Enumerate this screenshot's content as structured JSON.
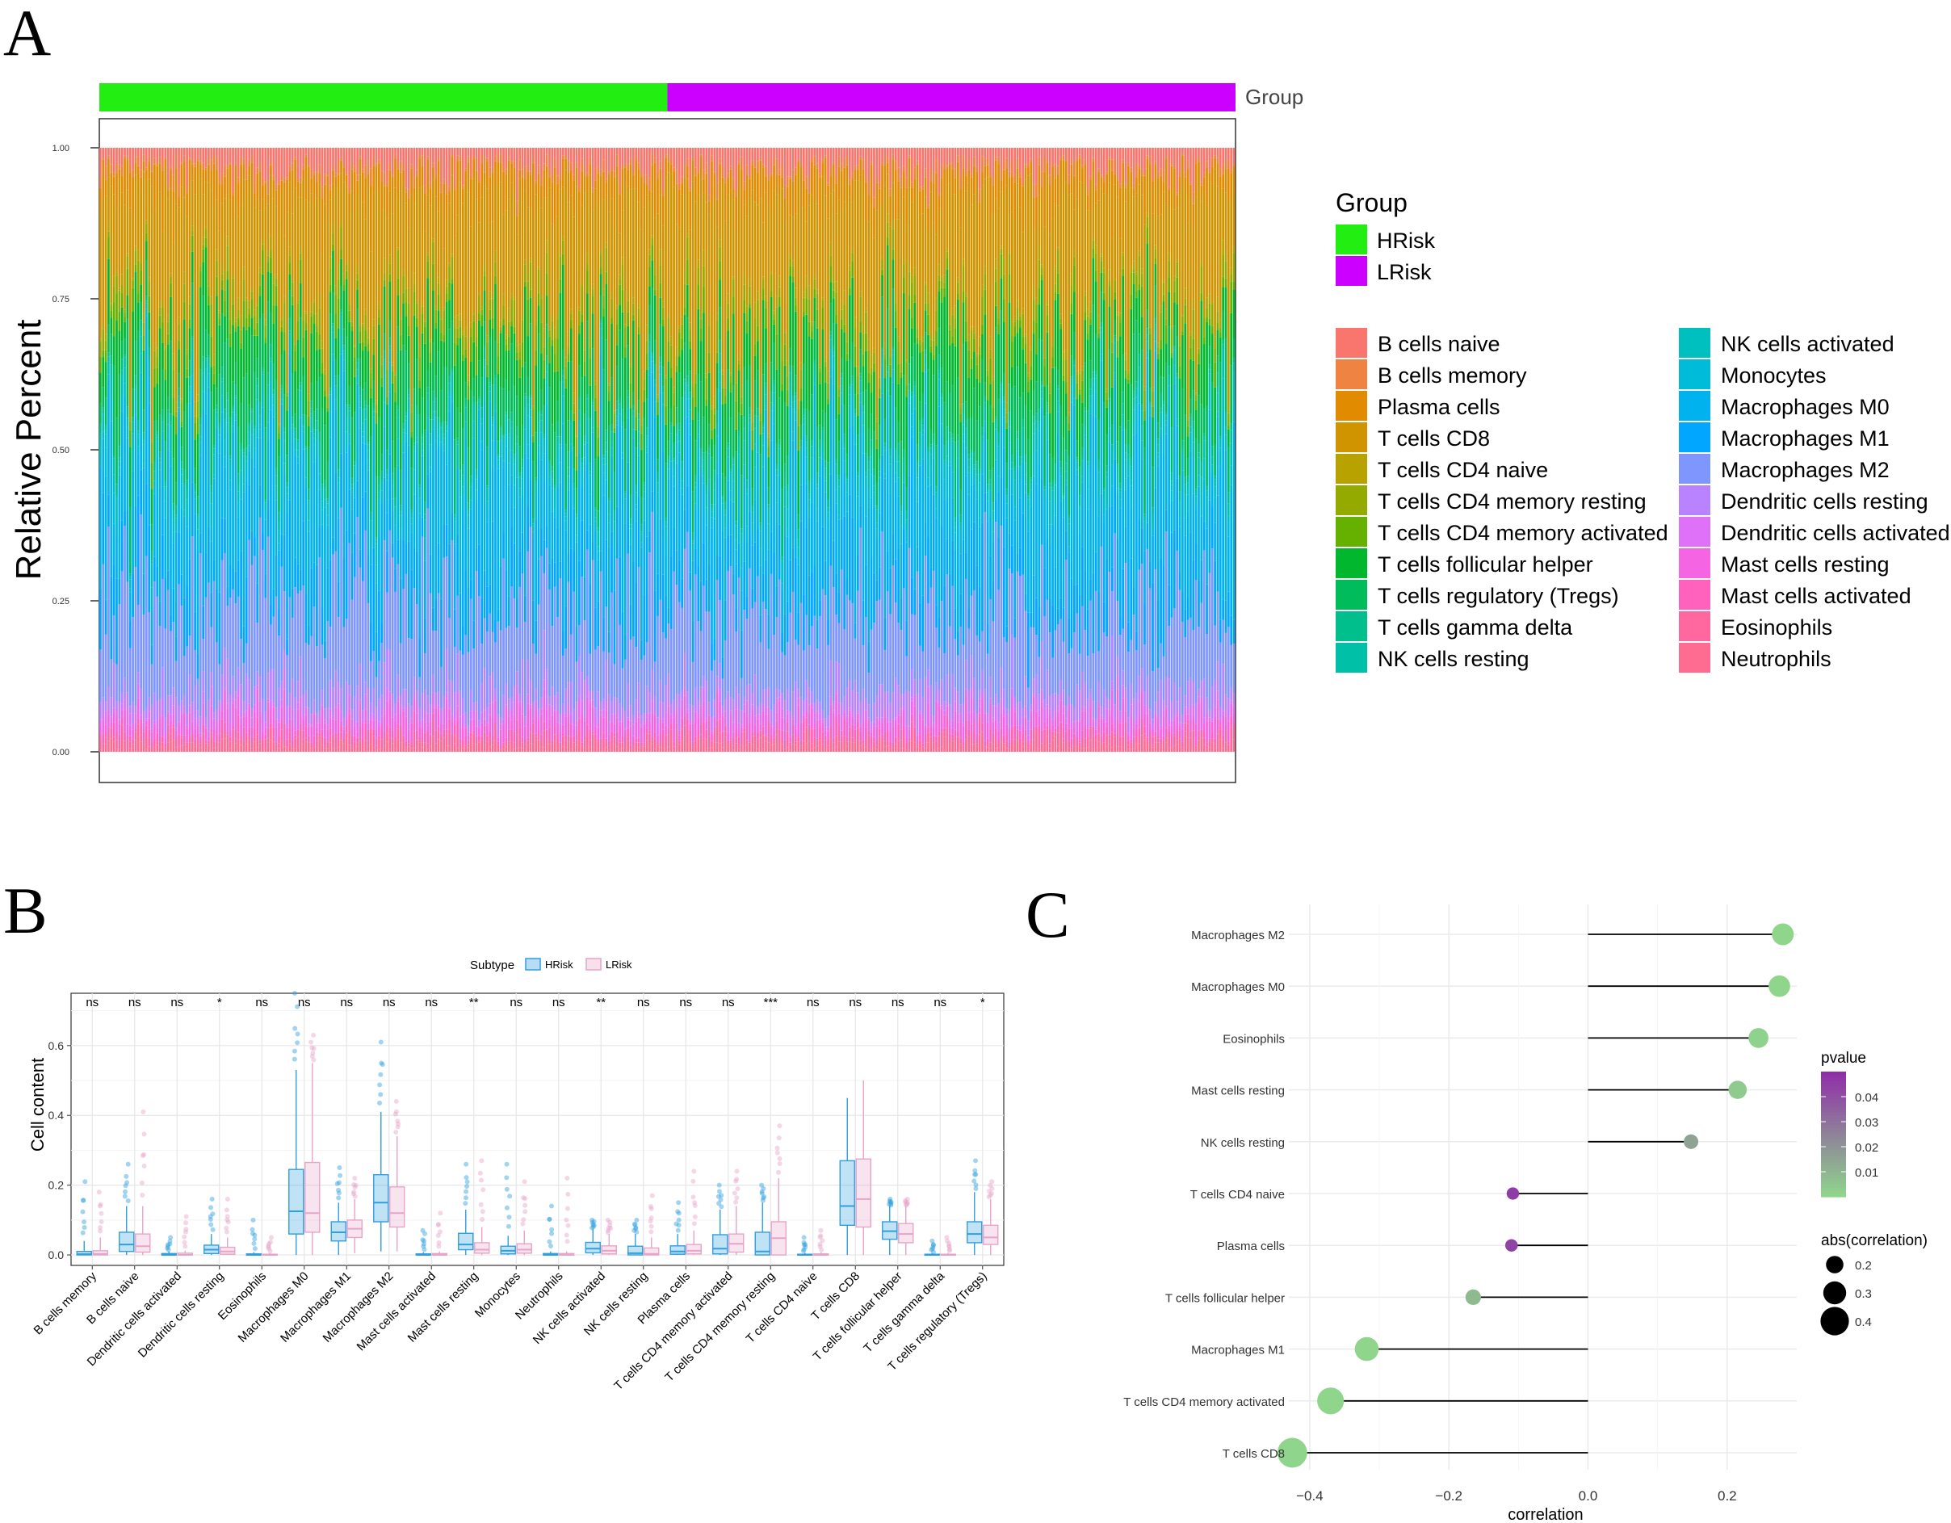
{
  "panels": {
    "a": "A",
    "b": "B",
    "c": "C"
  },
  "chart_data": [
    {
      "type": "bar",
      "subtype": "stacked-percent",
      "panel": "A",
      "ylabel": "Relative Percent",
      "yticks": [
        "0.00",
        "0.25",
        "0.50",
        "0.75",
        "1.00"
      ],
      "ylim": [
        0,
        1
      ],
      "group_label": "Group",
      "group_title": "Group",
      "groups": [
        {
          "name": "HRisk",
          "color": "#22EE11",
          "share": 0.5
        },
        {
          "name": "LRisk",
          "color": "#CC00FF",
          "share": 0.5
        }
      ],
      "cell_types_col1": [
        {
          "name": "B cells naive",
          "color": "#F8766D"
        },
        {
          "name": "B cells memory",
          "color": "#EF8341"
        },
        {
          "name": "Plasma cells",
          "color": "#E08B00"
        },
        {
          "name": "T cells CD8",
          "color": "#CF9400"
        },
        {
          "name": "T cells CD4 naive",
          "color": "#B8A200"
        },
        {
          "name": "T cells CD4 memory resting",
          "color": "#94AA00"
        },
        {
          "name": "T cells CD4 memory activated",
          "color": "#66B100"
        },
        {
          "name": "T cells follicular helper",
          "color": "#00B72E"
        },
        {
          "name": "T cells regulatory (Tregs)",
          "color": "#00BC5A"
        },
        {
          "name": "T cells gamma delta",
          "color": "#00BF8C"
        },
        {
          "name": "NK cells resting",
          "color": "#00C0A8"
        }
      ],
      "cell_types_col2": [
        {
          "name": "NK cells activated",
          "color": "#00BFBF"
        },
        {
          "name": "Monocytes",
          "color": "#00BCD8"
        },
        {
          "name": "Macrophages M0",
          "color": "#00B3EE"
        },
        {
          "name": "Macrophages M1",
          "color": "#00A6FF"
        },
        {
          "name": "Macrophages M2",
          "color": "#7F96FF"
        },
        {
          "name": "Dendritic cells resting",
          "color": "#B983FF"
        },
        {
          "name": "Dendritic cells activated",
          "color": "#DF70F8"
        },
        {
          "name": "Mast cells resting",
          "color": "#F564E3"
        },
        {
          "name": "Mast cells activated",
          "color": "#FF62BC"
        },
        {
          "name": "Eosinophils",
          "color": "#FF689F"
        },
        {
          "name": "Neutrophils",
          "color": "#FF6C91"
        }
      ],
      "mean_composition": {
        "Neutrophils": 0.01,
        "Eosinophils": 0.01,
        "Mast cells activated": 0.01,
        "Mast cells resting": 0.02,
        "Dendritic cells activated": 0.01,
        "Dendritic cells resting": 0.03,
        "Macrophages M2": 0.13,
        "Macrophages M1": 0.07,
        "Macrophages M0": 0.14,
        "Monocytes": 0.02,
        "NK cells activated": 0.02,
        "NK cells resting": 0.01,
        "T cells gamma delta": 0.01,
        "T cells regulatory (Tregs)": 0.06,
        "T cells follicular helper": 0.07,
        "T cells CD4 memory activated": 0.02,
        "T cells CD4 memory resting": 0.02,
        "T cells CD4 naive": 0.01,
        "T cells CD8": 0.17,
        "Plasma cells": 0.04,
        "B cells memory": 0.01,
        "B cells naive": 0.03
      }
    },
    {
      "type": "box",
      "panel": "B",
      "legend_title": "Subtype",
      "series": [
        {
          "name": "HRisk",
          "color": "#2E9FDF"
        },
        {
          "name": "LRisk",
          "color": "#E7A4C9"
        }
      ],
      "ylabel": "Cell content",
      "yticks": [
        "0.0",
        "0.2",
        "0.4",
        "0.6"
      ],
      "ylim": [
        -0.03,
        0.75
      ],
      "categories": [
        {
          "name": "B cells memory",
          "sig": "ns",
          "h": [
            0.0,
            0.0,
            0.002,
            0.01,
            0.04,
            0.21
          ],
          "l": [
            0.0,
            0.0,
            0.003,
            0.012,
            0.05,
            0.18
          ]
        },
        {
          "name": "B cells naive",
          "sig": "ns",
          "h": [
            0.0,
            0.01,
            0.03,
            0.065,
            0.14,
            0.26
          ],
          "l": [
            0.0,
            0.008,
            0.025,
            0.06,
            0.14,
            0.41
          ]
        },
        {
          "name": "Dendritic cells activated",
          "sig": "ns",
          "h": [
            0.0,
            0.0,
            0.0,
            0.004,
            0.01,
            0.05
          ],
          "l": [
            0.0,
            0.0,
            0.0,
            0.005,
            0.012,
            0.11
          ]
        },
        {
          "name": "Dendritic cells resting",
          "sig": "*",
          "h": [
            0.0,
            0.004,
            0.015,
            0.028,
            0.06,
            0.16
          ],
          "l": [
            0.0,
            0.002,
            0.01,
            0.022,
            0.05,
            0.16
          ]
        },
        {
          "name": "Eosinophils",
          "sig": "ns",
          "h": [
            0.0,
            0.0,
            0.0,
            0.003,
            0.008,
            0.1
          ],
          "l": [
            0.0,
            0.0,
            0.0,
            0.002,
            0.006,
            0.05
          ]
        },
        {
          "name": "Macrophages M0",
          "sig": "ns",
          "h": [
            0.0,
            0.06,
            0.125,
            0.245,
            0.53,
            0.75
          ],
          "l": [
            0.0,
            0.065,
            0.12,
            0.265,
            0.55,
            0.63
          ]
        },
        {
          "name": "Macrophages M1",
          "sig": "ns",
          "h": [
            0.0,
            0.04,
            0.065,
            0.095,
            0.15,
            0.25
          ],
          "l": [
            0.005,
            0.05,
            0.075,
            0.1,
            0.16,
            0.22
          ]
        },
        {
          "name": "Macrophages M2",
          "sig": "ns",
          "h": [
            0.01,
            0.095,
            0.15,
            0.23,
            0.41,
            0.61
          ],
          "l": [
            0.01,
            0.08,
            0.12,
            0.195,
            0.34,
            0.44
          ]
        },
        {
          "name": "Mast cells activated",
          "sig": "ns",
          "h": [
            0.0,
            0.0,
            0.0,
            0.003,
            0.008,
            0.07
          ],
          "l": [
            0.0,
            0.0,
            0.0,
            0.004,
            0.01,
            0.12
          ]
        },
        {
          "name": "Mast cells resting",
          "sig": "**",
          "h": [
            0.0,
            0.015,
            0.03,
            0.062,
            0.13,
            0.26
          ],
          "l": [
            0.0,
            0.005,
            0.015,
            0.035,
            0.08,
            0.27
          ]
        },
        {
          "name": "Monocytes",
          "sig": "ns",
          "h": [
            0.0,
            0.003,
            0.012,
            0.025,
            0.055,
            0.26
          ],
          "l": [
            0.0,
            0.005,
            0.015,
            0.032,
            0.07,
            0.21
          ]
        },
        {
          "name": "Neutrophils",
          "sig": "ns",
          "h": [
            0.0,
            0.0,
            0.0,
            0.004,
            0.01,
            0.14
          ],
          "l": [
            0.0,
            0.0,
            0.0,
            0.004,
            0.01,
            0.22
          ]
        },
        {
          "name": "NK cells activated",
          "sig": "**",
          "h": [
            0.0,
            0.006,
            0.018,
            0.036,
            0.075,
            0.1
          ],
          "l": [
            0.0,
            0.003,
            0.012,
            0.026,
            0.06,
            0.1
          ]
        },
        {
          "name": "NK cells resting",
          "sig": "ns",
          "h": [
            0.0,
            0.0,
            0.005,
            0.025,
            0.06,
            0.1
          ],
          "l": [
            0.0,
            0.0,
            0.003,
            0.02,
            0.05,
            0.17
          ]
        },
        {
          "name": "Plasma cells",
          "sig": "ns",
          "h": [
            0.0,
            0.002,
            0.01,
            0.026,
            0.06,
            0.15
          ],
          "l": [
            0.0,
            0.003,
            0.012,
            0.03,
            0.07,
            0.24
          ]
        },
        {
          "name": "T cells CD4 memory activated",
          "sig": "ns",
          "h": [
            0.0,
            0.003,
            0.018,
            0.058,
            0.13,
            0.2
          ],
          "l": [
            0.0,
            0.008,
            0.032,
            0.06,
            0.14,
            0.24
          ]
        },
        {
          "name": "T cells CD4 memory resting",
          "sig": "***",
          "h": [
            0.0,
            0.0,
            0.01,
            0.065,
            0.15,
            0.2
          ],
          "l": [
            0.0,
            0.0,
            0.048,
            0.095,
            0.22,
            0.37
          ]
        },
        {
          "name": "T cells CD4 naive",
          "sig": "ns",
          "h": [
            0.0,
            0.0,
            0.0,
            0.002,
            0.006,
            0.05
          ],
          "l": [
            0.0,
            0.0,
            0.0,
            0.003,
            0.008,
            0.07
          ]
        },
        {
          "name": "T cells CD8",
          "sig": "ns",
          "h": [
            0.0,
            0.085,
            0.14,
            0.27,
            0.45,
            0.45
          ],
          "l": [
            0.0,
            0.08,
            0.16,
            0.275,
            0.5,
            0.5
          ]
        },
        {
          "name": "T cells follicular helper",
          "sig": "ns",
          "h": [
            0.0,
            0.045,
            0.068,
            0.095,
            0.14,
            0.16
          ],
          "l": [
            0.0,
            0.035,
            0.06,
            0.09,
            0.14,
            0.16
          ]
        },
        {
          "name": "T cells gamma delta",
          "sig": "ns",
          "h": [
            0.0,
            0.0,
            0.0,
            0.002,
            0.005,
            0.04
          ],
          "l": [
            0.0,
            0.0,
            0.0,
            0.002,
            0.006,
            0.05
          ]
        },
        {
          "name": "T cells regulatory (Tregs)",
          "sig": "*",
          "h": [
            0.0,
            0.035,
            0.06,
            0.095,
            0.18,
            0.27
          ],
          "l": [
            0.0,
            0.03,
            0.05,
            0.085,
            0.16,
            0.21
          ]
        }
      ]
    },
    {
      "type": "lollipop",
      "panel": "C",
      "xlabel": "correlation",
      "xticks": [
        "−0.4",
        "−0.2",
        "0.0",
        "0.2"
      ],
      "xlim": [
        -0.43,
        0.3
      ],
      "color_legend_title": "pvalue",
      "color_legend_ticks": [
        "0.04",
        "0.03",
        "0.02",
        "0.01"
      ],
      "color_low": "#8FD58C",
      "color_high": "#8F2FA8",
      "size_legend_title": "abs(correlation)",
      "size_legend_ticks": [
        "0.2",
        "0.3",
        "0.4"
      ],
      "items": [
        {
          "name": "Macrophages M2",
          "correlation": 0.28,
          "pvalue": 0.0
        },
        {
          "name": "Macrophages M0",
          "correlation": 0.275,
          "pvalue": 0.0
        },
        {
          "name": "Eosinophils",
          "correlation": 0.245,
          "pvalue": 0.001
        },
        {
          "name": "Mast cells resting",
          "correlation": 0.215,
          "pvalue": 0.003
        },
        {
          "name": "NK cells resting",
          "correlation": 0.148,
          "pvalue": 0.015
        },
        {
          "name": "T cells CD4 naive",
          "correlation": -0.108,
          "pvalue": 0.046
        },
        {
          "name": "Plasma cells",
          "correlation": -0.11,
          "pvalue": 0.044
        },
        {
          "name": "T cells follicular helper",
          "correlation": -0.165,
          "pvalue": 0.008
        },
        {
          "name": "Macrophages M1",
          "correlation": -0.318,
          "pvalue": 0.0
        },
        {
          "name": "T cells CD4 memory activated",
          "correlation": -0.37,
          "pvalue": 0.0
        },
        {
          "name": "T cells CD8",
          "correlation": -0.425,
          "pvalue": 0.0
        }
      ]
    }
  ]
}
